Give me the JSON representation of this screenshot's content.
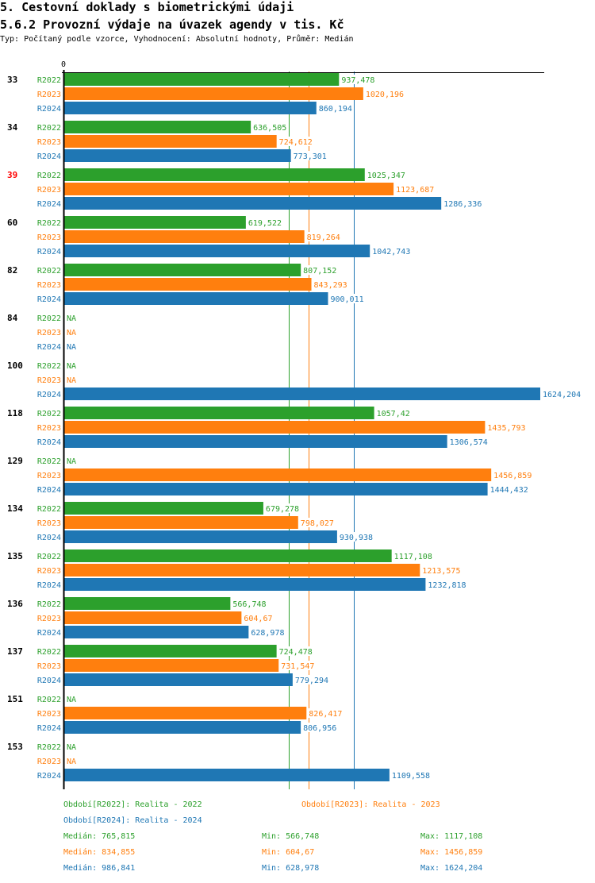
{
  "header": {
    "title": "5. Cestovní doklady s biometrickými údaji",
    "subtitle": "5.6.2 Provozní výdaje na úvazek agendy v tis. Kč",
    "info": "Typ: Počítaný podle vzorce, Vyhodnocení: Absolutní hodnoty, Průměr: Medián"
  },
  "colors": {
    "R2022": "#2ca02c",
    "R2023": "#ff7f0e",
    "R2024": "#1f77b4",
    "highlight": "#ff0000",
    "axis": "#000000"
  },
  "chart_data": {
    "type": "bar",
    "orientation": "horizontal",
    "title": "5.6.2 Provozní výdaje na úvazek agendy v tis. Kč",
    "xlabel": "",
    "ylabel": "",
    "axis_zero_label": "0",
    "xlim": [
      0,
      1624.204
    ],
    "grid": false,
    "na_label": "NA",
    "series_names": [
      "R2022",
      "R2023",
      "R2024"
    ],
    "categories": [
      {
        "label": "33",
        "highlight": false
      },
      {
        "label": "34",
        "highlight": false
      },
      {
        "label": "39",
        "highlight": true
      },
      {
        "label": "60",
        "highlight": false
      },
      {
        "label": "82",
        "highlight": false
      },
      {
        "label": "84",
        "highlight": false
      },
      {
        "label": "100",
        "highlight": false
      },
      {
        "label": "118",
        "highlight": false
      },
      {
        "label": "129",
        "highlight": false
      },
      {
        "label": "134",
        "highlight": false
      },
      {
        "label": "135",
        "highlight": false
      },
      {
        "label": "136",
        "highlight": false
      },
      {
        "label": "137",
        "highlight": false
      },
      {
        "label": "151",
        "highlight": false
      },
      {
        "label": "153",
        "highlight": false
      }
    ],
    "series": [
      {
        "name": "R2022",
        "values": [
          937.478,
          636.505,
          1025.347,
          619.522,
          807.152,
          null,
          null,
          1057.42,
          null,
          679.278,
          1117.108,
          566.748,
          724.478,
          null,
          null
        ],
        "labels": [
          "937,478",
          "636,505",
          "1025,347",
          "619,522",
          "807,152",
          "NA",
          "NA",
          "1057,42",
          "NA",
          "679,278",
          "1117,108",
          "566,748",
          "724,478",
          "NA",
          "NA"
        ]
      },
      {
        "name": "R2023",
        "values": [
          1020.196,
          724.612,
          1123.687,
          819.264,
          843.293,
          null,
          null,
          1435.793,
          1456.859,
          798.027,
          1213.575,
          604.67,
          731.547,
          826.417,
          null
        ],
        "labels": [
          "1020,196",
          "724,612",
          "1123,687",
          "819,264",
          "843,293",
          "NA",
          "NA",
          "1435,793",
          "1456,859",
          "798,027",
          "1213,575",
          "604,67",
          "731,547",
          "826,417",
          "NA"
        ]
      },
      {
        "name": "R2024",
        "values": [
          860.194,
          773.301,
          1286.336,
          1042.743,
          900.011,
          null,
          1624.204,
          1306.574,
          1444.432,
          930.938,
          1232.818,
          628.978,
          779.294,
          806.956,
          1109.558
        ],
        "labels": [
          "860,194",
          "773,301",
          "1286,336",
          "1042,743",
          "900,011",
          "NA",
          "1624,204",
          "1306,574",
          "1444,432",
          "930,938",
          "1232,818",
          "628,978",
          "779,294",
          "806,956",
          "1109,558"
        ]
      }
    ],
    "median_lines": [
      {
        "series": "R2022",
        "value": 765.815
      },
      {
        "series": "R2023",
        "value": 834.855
      },
      {
        "series": "R2024",
        "value": 986.841
      }
    ],
    "legend": [
      {
        "series": "R2022",
        "text": "Období[R2022]: Realita - 2022"
      },
      {
        "series": "R2023",
        "text": "Období[R2023]: Realita - 2023"
      },
      {
        "series": "R2024",
        "text": "Období[R2024]: Realita - 2024"
      }
    ],
    "legend_position": "bottom",
    "stats": [
      {
        "series": "R2022",
        "median": "Medián: 765,815",
        "min": "Min: 566,748",
        "max": "Max: 1117,108"
      },
      {
        "series": "R2023",
        "median": "Medián: 834,855",
        "min": "Min: 604,67",
        "max": "Max: 1456,859"
      },
      {
        "series": "R2024",
        "median": "Medián: 986,841",
        "min": "Min: 628,978",
        "max": "Max: 1624,204"
      }
    ]
  }
}
